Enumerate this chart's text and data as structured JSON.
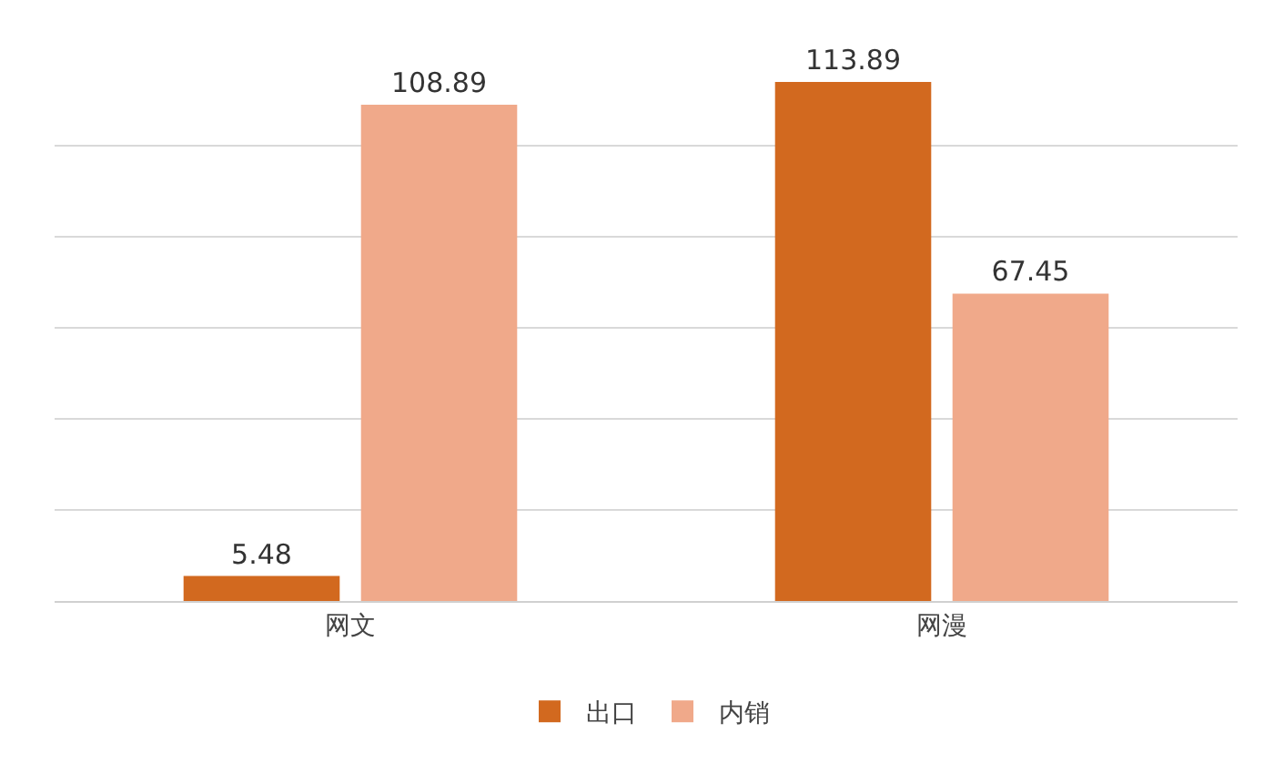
{
  "chart_data": {
    "type": "bar",
    "categories": [
      "网文",
      "网漫"
    ],
    "series": [
      {
        "name": "出口",
        "color": "#d2691f",
        "values": [
          5.48,
          113.89
        ]
      },
      {
        "name": "内销",
        "color": "#f0a98a",
        "values": [
          108.89,
          67.45
        ]
      }
    ],
    "tick_labels": "x",
    "grid": "y",
    "legend": "bottom",
    "data_labels": true
  }
}
